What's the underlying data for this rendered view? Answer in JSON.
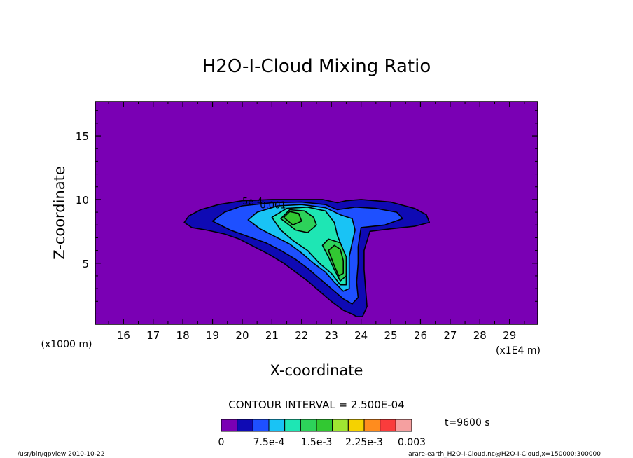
{
  "chart_data": {
    "type": "heatmap",
    "subtype": "filled-contour",
    "title": "H2O-I-Cloud Mixing Ratio",
    "xlabel": "X-coordinate",
    "ylabel": "Z-coordinate",
    "x_unit_left": "(x1000 m)",
    "x_unit_right": "(x1E4 m)",
    "xlim": [
      15.05,
      29.95
    ],
    "ylim": [
      0.2,
      17.7
    ],
    "x_ticks": [
      "16",
      "17",
      "18",
      "19",
      "20",
      "21",
      "22",
      "23",
      "24",
      "25",
      "26",
      "27",
      "28",
      "29"
    ],
    "y_ticks": [
      "5",
      "10",
      "15"
    ],
    "contour_interval_text": "CONTOUR INTERVAL = 2.500E-04",
    "contour_labels": [
      "5e-4",
      "0.001"
    ],
    "time_text": "t=9600 s",
    "colorbar": {
      "colors": [
        "#7a00b4",
        "#0f0ab4",
        "#1e50ff",
        "#19c3f5",
        "#1ee6b4",
        "#2dd25a",
        "#32c832",
        "#a0e632",
        "#f5d200",
        "#ff8c1e",
        "#fa3c3c",
        "#f5a0a0"
      ],
      "tick_labels": [
        "0",
        "7.5e-4",
        "1.5e-3",
        "2.25e-3",
        "0.003"
      ]
    },
    "background_color": "#7a00b4",
    "regions": [
      {
        "level": 1,
        "color": "#0f0ab4",
        "points": [
          [
            18.05,
            8.2
          ],
          [
            18.2,
            8.7
          ],
          [
            18.6,
            9.2
          ],
          [
            19.2,
            9.6
          ],
          [
            20.0,
            9.9
          ],
          [
            21.0,
            10.0
          ],
          [
            22.0,
            10.0
          ],
          [
            22.7,
            10.0
          ],
          [
            23.2,
            9.75
          ],
          [
            23.5,
            9.9
          ],
          [
            24.0,
            10.0
          ],
          [
            25.0,
            9.8
          ],
          [
            25.8,
            9.3
          ],
          [
            26.2,
            8.8
          ],
          [
            26.3,
            8.2
          ],
          [
            25.8,
            7.9
          ],
          [
            25.0,
            7.7
          ],
          [
            24.3,
            7.5
          ],
          [
            24.1,
            6.0
          ],
          [
            24.1,
            4.5
          ],
          [
            24.15,
            3.0
          ],
          [
            24.2,
            1.6
          ],
          [
            24.05,
            0.8
          ],
          [
            23.85,
            0.8
          ],
          [
            23.7,
            1.0
          ],
          [
            23.4,
            1.3
          ],
          [
            23.0,
            2.0
          ],
          [
            22.6,
            2.8
          ],
          [
            22.2,
            3.6
          ],
          [
            21.8,
            4.3
          ],
          [
            21.4,
            5.0
          ],
          [
            20.9,
            5.7
          ],
          [
            20.4,
            6.3
          ],
          [
            19.9,
            6.9
          ],
          [
            19.4,
            7.3
          ],
          [
            18.8,
            7.6
          ],
          [
            18.3,
            7.8
          ]
        ]
      },
      {
        "level": 2,
        "color": "#1e50ff",
        "points": [
          [
            19.0,
            8.3
          ],
          [
            19.4,
            9.0
          ],
          [
            20.0,
            9.5
          ],
          [
            21.0,
            9.75
          ],
          [
            22.0,
            9.8
          ],
          [
            22.8,
            9.6
          ],
          [
            23.2,
            9.2
          ],
          [
            23.8,
            9.4
          ],
          [
            24.5,
            9.3
          ],
          [
            25.2,
            9.0
          ],
          [
            25.4,
            8.5
          ],
          [
            24.8,
            8.0
          ],
          [
            24.0,
            7.8
          ],
          [
            23.9,
            6.3
          ],
          [
            23.9,
            5.0
          ],
          [
            23.85,
            3.5
          ],
          [
            23.9,
            2.3
          ],
          [
            23.7,
            1.8
          ],
          [
            23.4,
            2.2
          ],
          [
            23.0,
            3.0
          ],
          [
            22.6,
            3.8
          ],
          [
            22.2,
            4.6
          ],
          [
            21.8,
            5.3
          ],
          [
            21.3,
            6.0
          ],
          [
            20.8,
            6.6
          ],
          [
            20.2,
            7.1
          ],
          [
            19.6,
            7.6
          ]
        ]
      },
      {
        "level": 3,
        "color": "#19c3f5",
        "points": [
          [
            20.2,
            8.4
          ],
          [
            20.5,
            9.0
          ],
          [
            21.2,
            9.5
          ],
          [
            22.0,
            9.6
          ],
          [
            22.8,
            9.35
          ],
          [
            23.3,
            8.8
          ],
          [
            23.7,
            8.5
          ],
          [
            23.8,
            7.6
          ],
          [
            23.7,
            6.6
          ],
          [
            23.6,
            5.5
          ],
          [
            23.6,
            4.3
          ],
          [
            23.6,
            3.0
          ],
          [
            23.4,
            2.8
          ],
          [
            23.1,
            3.5
          ],
          [
            22.8,
            4.3
          ],
          [
            22.4,
            5.0
          ],
          [
            22.0,
            5.8
          ],
          [
            21.6,
            6.5
          ],
          [
            21.1,
            7.1
          ],
          [
            20.6,
            7.7
          ]
        ]
      },
      {
        "level": 4,
        "color": "#1ee6b4",
        "points": [
          [
            21.0,
            8.6
          ],
          [
            21.5,
            9.3
          ],
          [
            22.2,
            9.4
          ],
          [
            22.8,
            9.1
          ],
          [
            23.1,
            8.2
          ],
          [
            23.2,
            7.2
          ],
          [
            23.4,
            6.0
          ],
          [
            23.5,
            4.8
          ],
          [
            23.5,
            3.3
          ],
          [
            23.3,
            3.3
          ],
          [
            23.0,
            4.2
          ],
          [
            22.6,
            5.0
          ],
          [
            22.2,
            6.0
          ],
          [
            21.7,
            6.8
          ],
          [
            21.3,
            7.6
          ]
        ]
      },
      {
        "level": 5,
        "color": "#2dd25a",
        "points": [
          [
            21.3,
            8.5
          ],
          [
            21.6,
            9.2
          ],
          [
            22.1,
            9.1
          ],
          [
            22.4,
            8.6
          ],
          [
            22.5,
            8.0
          ],
          [
            22.2,
            7.4
          ],
          [
            21.8,
            7.6
          ]
        ]
      },
      {
        "level": 5,
        "color": "#2dd25a",
        "points": [
          [
            22.7,
            6.4
          ],
          [
            22.9,
            6.9
          ],
          [
            23.3,
            6.6
          ],
          [
            23.5,
            5.5
          ],
          [
            23.5,
            4.0
          ],
          [
            23.3,
            3.6
          ],
          [
            23.1,
            4.5
          ],
          [
            22.9,
            5.5
          ]
        ]
      },
      {
        "level": 6,
        "color": "#32c832",
        "points": [
          [
            21.4,
            8.6
          ],
          [
            21.6,
            9.05
          ],
          [
            21.9,
            8.9
          ],
          [
            22.0,
            8.3
          ],
          [
            21.7,
            8.0
          ]
        ]
      },
      {
        "level": 6,
        "color": "#32c832",
        "points": [
          [
            22.9,
            6.0
          ],
          [
            23.1,
            6.4
          ],
          [
            23.3,
            6.1
          ],
          [
            23.4,
            5.2
          ],
          [
            23.4,
            4.2
          ],
          [
            23.25,
            4.0
          ],
          [
            23.1,
            4.8
          ]
        ]
      }
    ]
  },
  "footer": {
    "left": "/usr/bin/gpview  2010-10-22",
    "right": "arare-earth_H2O-I-Cloud.nc@H2O-I-Cloud,x=150000:300000"
  }
}
